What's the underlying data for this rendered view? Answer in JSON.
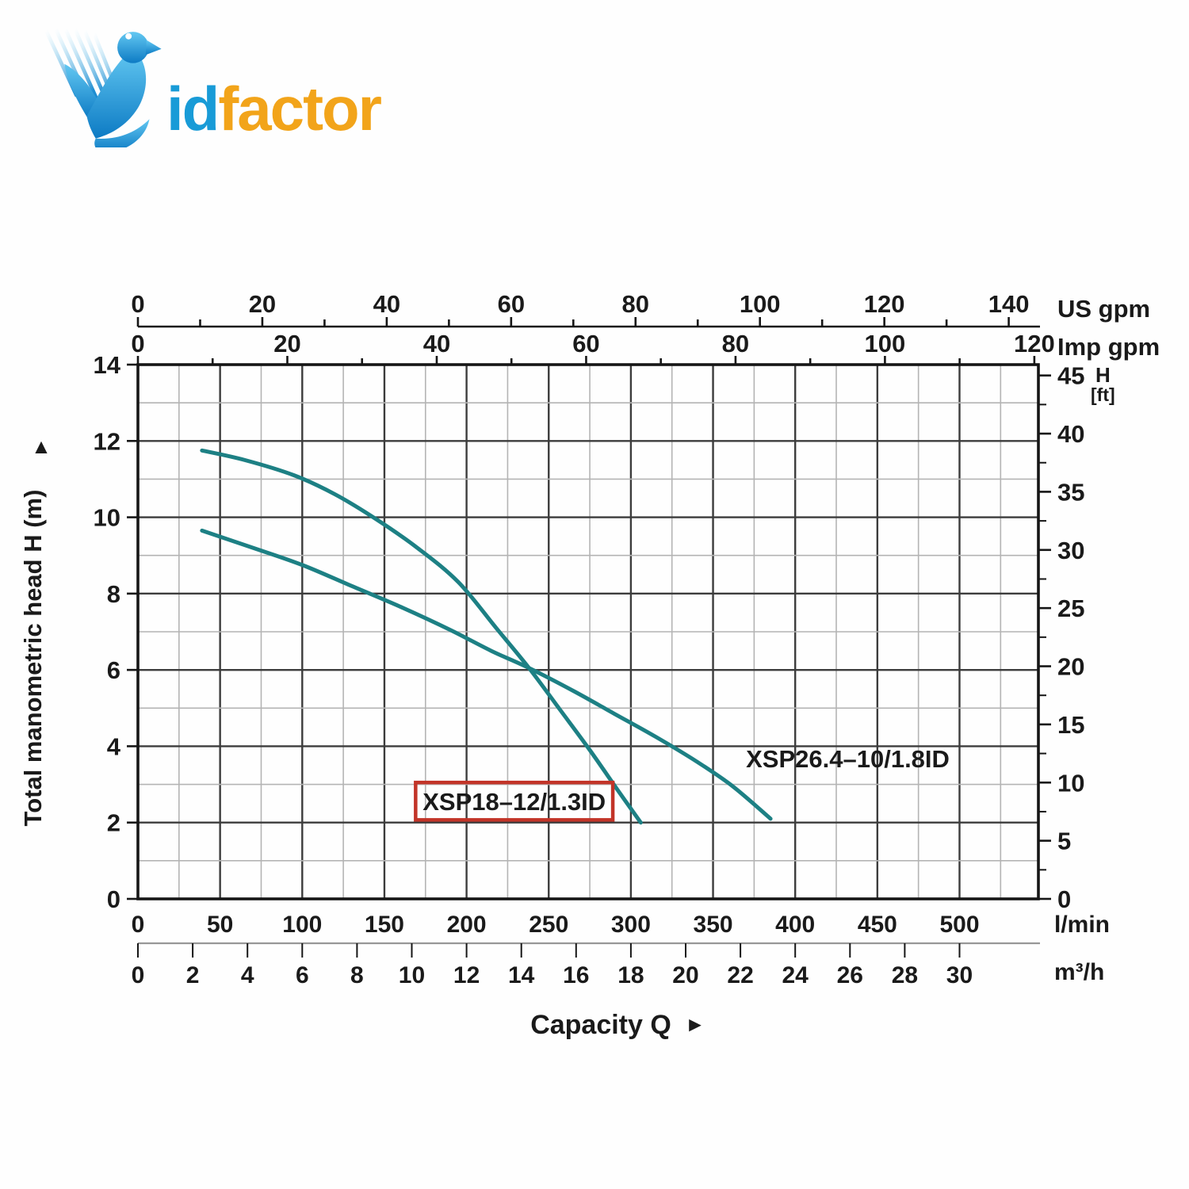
{
  "logo": {
    "brand_prefix": "id",
    "brand_suffix": "factor",
    "mark": "bird-swoosh-icon",
    "color_blue": "#189bd7",
    "color_orange": "#f2a41a"
  },
  "chart_data": {
    "type": "line",
    "title": "",
    "xlabel": "Capacity Q",
    "xlabel_arrow": "►",
    "ylabel": "Total manometric head H (m)",
    "ylabel_arrow": "▲",
    "curve_color": "#1d8084",
    "grid": true,
    "ylim": [
      0,
      14
    ],
    "axes": {
      "top_primary": {
        "unit": "US gpm",
        "tick_labels": [
          0,
          20,
          40,
          60,
          80,
          100,
          120,
          140
        ],
        "minor_step": 10,
        "lmin_per_unit": 3.7854
      },
      "top_secondary": {
        "unit": "Imp gpm",
        "tick_labels": [
          0,
          20,
          40,
          60,
          80,
          100,
          120
        ],
        "minor_step": 10,
        "lmin_per_unit": 4.5461
      },
      "bottom_primary": {
        "unit": "l/min",
        "tick_labels": [
          0,
          50,
          100,
          150,
          200,
          250,
          300,
          350,
          400,
          450,
          500
        ],
        "grid_minor_step": 25,
        "grid_major_step": 50,
        "max": 548
      },
      "bottom_secondary": {
        "unit": "m³/h",
        "tick_labels": [
          0,
          2,
          4,
          6,
          8,
          10,
          12,
          14,
          16,
          18,
          20,
          22,
          24,
          26,
          28,
          30
        ],
        "lmin_per_unit": 16.6667
      },
      "left": {
        "unit": "m",
        "tick_labels": [
          0,
          2,
          4,
          6,
          8,
          10,
          12,
          14
        ],
        "minor_step": 1
      },
      "right": {
        "unit_line1": "H",
        "unit_line2": "[ft]",
        "tick_labels": [
          0,
          5,
          10,
          15,
          20,
          25,
          30,
          35,
          40,
          45
        ],
        "minor_step": 2.5,
        "m_per_ft": 0.3048
      }
    },
    "series": [
      {
        "name": "XSP18–12/1.3ID",
        "x_lmin": [
          39,
          65,
          95,
          120,
          145,
          170,
          195,
          218,
          238,
          257,
          275,
          292,
          306
        ],
        "y_m": [
          11.75,
          11.5,
          11.1,
          10.6,
          9.95,
          9.2,
          8.3,
          7.1,
          6.05,
          4.95,
          3.9,
          2.85,
          2.0
        ],
        "label": {
          "text": "XSP18–12/1.3ID",
          "q": 229,
          "h": 2.56,
          "boxed": true,
          "box_color": "#c23428",
          "box_q": [
            169,
            289
          ],
          "box_h": [
            2.07,
            3.05
          ]
        }
      },
      {
        "name": "XSP26.4–10/1.8ID",
        "x_lmin": [
          39,
          70,
          100,
          130,
          160,
          190,
          215,
          238,
          265,
          290,
          315,
          340,
          362,
          385
        ],
        "y_m": [
          9.65,
          9.2,
          8.75,
          8.2,
          7.65,
          7.05,
          6.5,
          6.05,
          5.45,
          4.85,
          4.25,
          3.6,
          2.95,
          2.1
        ],
        "label": {
          "text": "XSP26.4–10/1.8ID",
          "q": 432,
          "h": 3.68,
          "boxed": false
        }
      }
    ]
  }
}
